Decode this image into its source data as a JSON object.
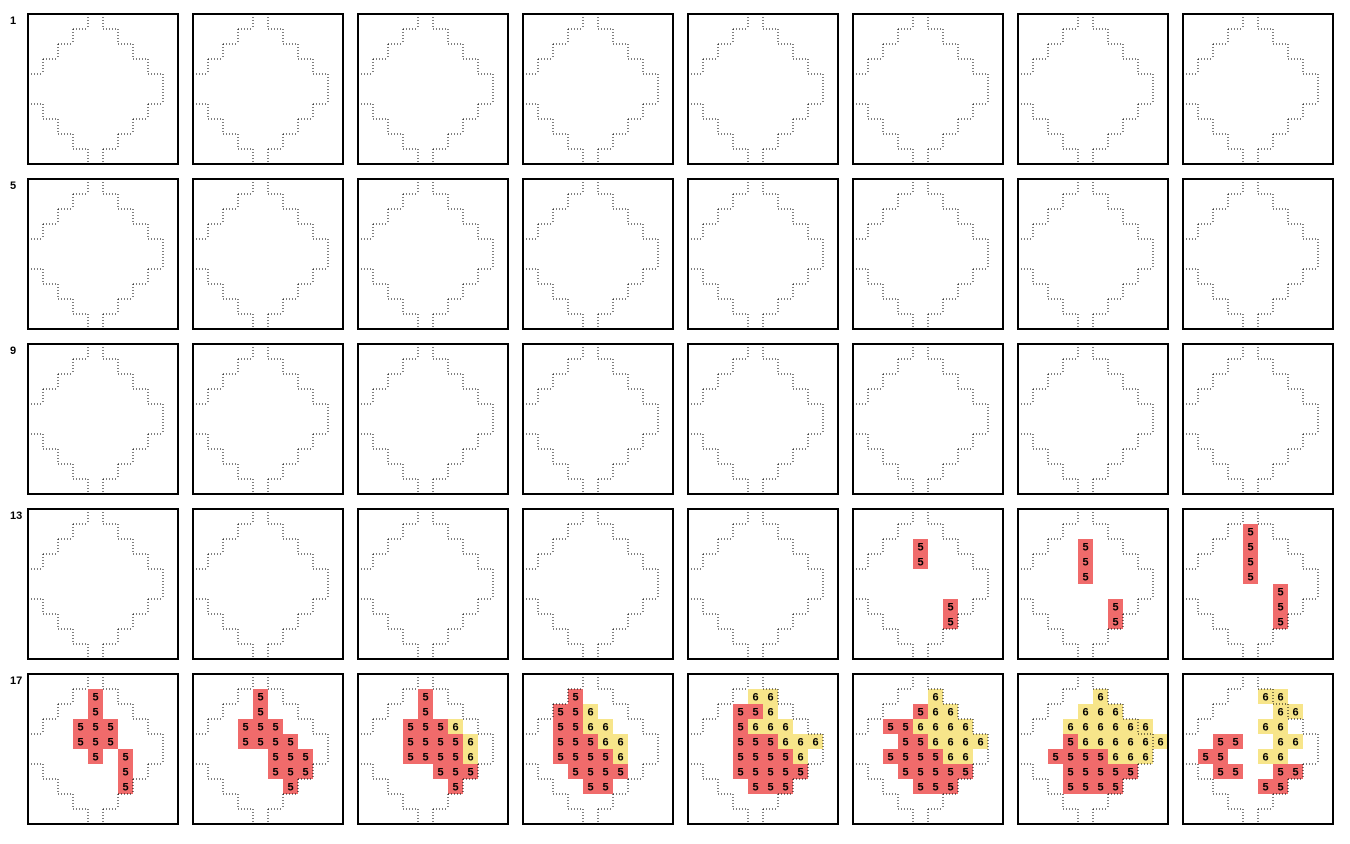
{
  "row_labels": [
    "1",
    "5",
    "9",
    "13",
    "17"
  ],
  "cell_colors": {
    "5": "#f06b6b",
    "6": "#f7e58a"
  },
  "panels": [
    {
      "grid": []
    },
    {
      "grid": []
    },
    {
      "grid": []
    },
    {
      "grid": []
    },
    {
      "grid": []
    },
    {
      "grid": []
    },
    {
      "grid": []
    },
    {
      "grid": []
    },
    {
      "grid": []
    },
    {
      "grid": []
    },
    {
      "grid": []
    },
    {
      "grid": []
    },
    {
      "grid": []
    },
    {
      "grid": []
    },
    {
      "grid": []
    },
    {
      "grid": []
    },
    {
      "grid": []
    },
    {
      "grid": []
    },
    {
      "grid": []
    },
    {
      "grid": []
    },
    {
      "grid": []
    },
    {
      "grid": []
    },
    {
      "grid": []
    },
    {
      "grid": []
    },
    {
      "grid": []
    },
    {
      "grid": []
    },
    {
      "grid": []
    },
    {
      "grid": []
    },
    {
      "grid": []
    },
    {
      "grid": [
        [],
        [],
        [
          null,
          null,
          null,
          null,
          "5"
        ],
        [
          null,
          null,
          null,
          null,
          "5"
        ],
        [],
        [],
        [
          null,
          null,
          null,
          null,
          null,
          null,
          "5"
        ],
        [
          null,
          null,
          null,
          null,
          null,
          null,
          "5"
        ]
      ]
    },
    {
      "grid": [
        [],
        [],
        [
          null,
          null,
          null,
          null,
          "5"
        ],
        [
          null,
          null,
          null,
          null,
          "5"
        ],
        [
          null,
          null,
          null,
          null,
          "5"
        ],
        [],
        [
          null,
          null,
          null,
          null,
          null,
          null,
          "5"
        ],
        [
          null,
          null,
          null,
          null,
          null,
          null,
          "5"
        ]
      ]
    },
    {
      "grid": [
        [],
        [
          null,
          null,
          null,
          null,
          "5"
        ],
        [
          null,
          null,
          null,
          null,
          "5"
        ],
        [
          null,
          null,
          null,
          null,
          "5"
        ],
        [
          null,
          null,
          null,
          null,
          "5"
        ],
        [
          null,
          null,
          null,
          null,
          null,
          null,
          "5"
        ],
        [
          null,
          null,
          null,
          null,
          null,
          null,
          "5"
        ],
        [
          null,
          null,
          null,
          null,
          null,
          null,
          "5"
        ]
      ]
    },
    {
      "grid": [
        [],
        [
          null,
          null,
          null,
          null,
          "5"
        ],
        [
          null,
          null,
          null,
          null,
          "5"
        ],
        [
          null,
          null,
          null,
          "5",
          "5",
          "5"
        ],
        [
          null,
          null,
          null,
          "5",
          "5",
          "5"
        ],
        [
          null,
          null,
          null,
          null,
          "5",
          null,
          "5"
        ],
        [
          null,
          null,
          null,
          null,
          null,
          null,
          "5"
        ],
        [
          null,
          null,
          null,
          null,
          null,
          null,
          "5"
        ]
      ]
    },
    {
      "grid": [
        [],
        [
          null,
          null,
          null,
          null,
          "5"
        ],
        [
          null,
          null,
          null,
          null,
          "5"
        ],
        [
          null,
          null,
          null,
          "5",
          "5",
          "5"
        ],
        [
          null,
          null,
          null,
          "5",
          "5",
          "5",
          "5"
        ],
        [
          null,
          null,
          null,
          null,
          null,
          "5",
          "5",
          "5"
        ],
        [
          null,
          null,
          null,
          null,
          null,
          "5",
          "5",
          "5"
        ],
        [
          null,
          null,
          null,
          null,
          null,
          null,
          "5"
        ]
      ]
    },
    {
      "grid": [
        [],
        [
          null,
          null,
          null,
          null,
          "5"
        ],
        [
          null,
          null,
          null,
          null,
          "5"
        ],
        [
          null,
          null,
          null,
          "5",
          "5",
          "5",
          "6"
        ],
        [
          null,
          null,
          null,
          "5",
          "5",
          "5",
          "5",
          "6"
        ],
        [
          null,
          null,
          null,
          "5",
          "5",
          "5",
          "5",
          "6"
        ],
        [
          null,
          null,
          null,
          null,
          null,
          "5",
          "5",
          "5"
        ],
        [
          null,
          null,
          null,
          null,
          null,
          null,
          "5"
        ]
      ]
    },
    {
      "grid": [
        [],
        [
          null,
          null,
          null,
          "5"
        ],
        [
          null,
          null,
          "5",
          "5",
          "6"
        ],
        [
          null,
          null,
          "5",
          "5",
          "6",
          "6"
        ],
        [
          null,
          null,
          "5",
          "5",
          "5",
          "6",
          "6"
        ],
        [
          null,
          null,
          "5",
          "5",
          "5",
          "5",
          "6"
        ],
        [
          null,
          null,
          null,
          "5",
          "5",
          "5",
          "5"
        ],
        [
          null,
          null,
          null,
          null,
          "5",
          "5"
        ]
      ]
    },
    {
      "grid": [
        [],
        [
          null,
          null,
          null,
          null,
          "6",
          "6"
        ],
        [
          null,
          null,
          null,
          "5",
          "5",
          "6"
        ],
        [
          null,
          null,
          null,
          "5",
          "6",
          "6",
          "6"
        ],
        [
          null,
          null,
          null,
          "5",
          "5",
          "5",
          "6",
          "6",
          "6"
        ],
        [
          null,
          null,
          null,
          "5",
          "5",
          "5",
          "5",
          "6"
        ],
        [
          null,
          null,
          null,
          "5",
          "5",
          "5",
          "5",
          "5"
        ],
        [
          null,
          null,
          null,
          null,
          "5",
          "5",
          "5"
        ]
      ]
    },
    {
      "grid": [
        [],
        [
          null,
          null,
          null,
          null,
          null,
          "6"
        ],
        [
          null,
          null,
          null,
          null,
          "5",
          "6",
          "6"
        ],
        [
          null,
          null,
          "5",
          "5",
          "6",
          "6",
          "6",
          "6"
        ],
        [
          null,
          null,
          null,
          "5",
          "5",
          "6",
          "6",
          "6",
          "6"
        ],
        [
          null,
          null,
          "5",
          "5",
          "5",
          "5",
          "6",
          "6"
        ],
        [
          null,
          null,
          null,
          "5",
          "5",
          "5",
          "5",
          "5"
        ],
        [
          null,
          null,
          null,
          null,
          "5",
          "5",
          "5"
        ]
      ]
    },
    {
      "grid": [
        [],
        [
          null,
          null,
          null,
          null,
          null,
          "6"
        ],
        [
          null,
          null,
          null,
          null,
          "6",
          "6",
          "6"
        ],
        [
          null,
          null,
          null,
          "6",
          "6",
          "6",
          "6",
          "6",
          "6"
        ],
        [
          null,
          null,
          null,
          "5",
          "6",
          "6",
          "6",
          "6",
          "6",
          "6"
        ],
        [
          null,
          null,
          "5",
          "5",
          "5",
          "5",
          "6",
          "6",
          "6"
        ],
        [
          null,
          null,
          null,
          "5",
          "5",
          "5",
          "5",
          "5"
        ],
        [
          null,
          null,
          null,
          "5",
          "5",
          "5",
          "5"
        ]
      ]
    },
    {
      "grid": [
        [],
        [
          null,
          null,
          null,
          null,
          null,
          "6",
          "6"
        ],
        [
          null,
          null,
          null,
          null,
          null,
          null,
          "6",
          "6"
        ],
        [
          null,
          null,
          null,
          null,
          null,
          "6",
          "6"
        ],
        [
          null,
          null,
          "5",
          "5",
          null,
          null,
          "6",
          "6"
        ],
        [
          null,
          "5",
          "5",
          null,
          null,
          "6",
          "6"
        ],
        [
          null,
          null,
          "5",
          "5",
          null,
          null,
          "5",
          "5"
        ],
        [
          null,
          null,
          null,
          null,
          null,
          "5",
          "5"
        ]
      ]
    }
  ]
}
